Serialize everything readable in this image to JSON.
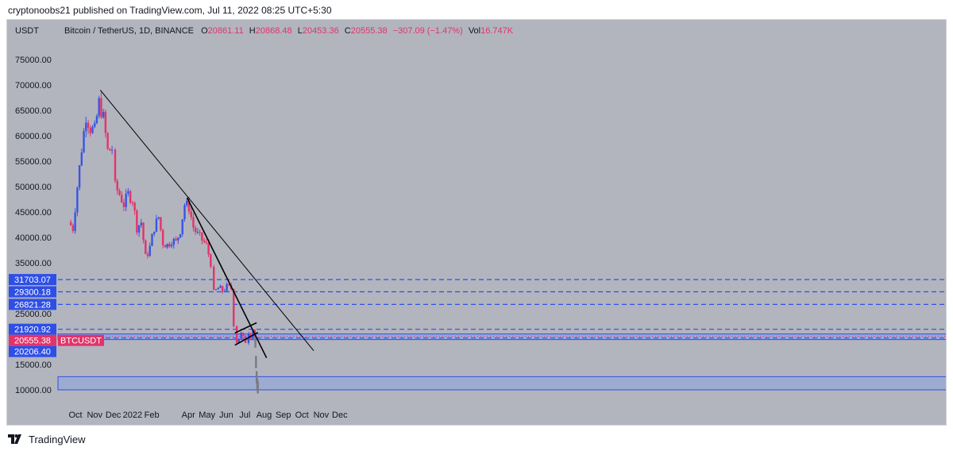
{
  "header": {
    "text": "cryptonoobs21 published on TradingView.com, Jul 11, 2022 08:25 UTC+5:30"
  },
  "footer": {
    "brand": "TradingView"
  },
  "colors": {
    "background": "#b2b5be",
    "up": "#3a55e0",
    "down": "#e3336b",
    "level": "#2e4fe6",
    "zone": "#8ea3e0",
    "trend": "#000000"
  },
  "chart_data": {
    "type": "candlestick",
    "symbol_line": {
      "currency": "USDT",
      "name": "Bitcoin / TetherUS, 1D, BINANCE",
      "o_label": "O",
      "o": "20861.11",
      "h_label": "H",
      "h": "20868.48",
      "l_label": "L",
      "l": "20453.36",
      "c_label": "C",
      "c": "20555.38",
      "change": "−307.09 (−1.47%)",
      "vol_label": "Vol",
      "vol": "16.747K"
    },
    "y_ticks": [
      "75000.00",
      "70000.00",
      "65000.00",
      "60000.00",
      "55000.00",
      "50000.00",
      "45000.00",
      "40000.00",
      "35000.00",
      "25000.00",
      "15000.00",
      "10000.00"
    ],
    "y_tick_values": [
      75000,
      70000,
      65000,
      60000,
      55000,
      50000,
      45000,
      40000,
      35000,
      25000,
      15000,
      10000
    ],
    "x_ticks": [
      {
        "label": "Oct",
        "date": "2021-10-01"
      },
      {
        "label": "Nov",
        "date": "2021-11-01"
      },
      {
        "label": "Dec",
        "date": "2021-12-01"
      },
      {
        "label": "2022",
        "date": "2022-01-01"
      },
      {
        "label": "Feb",
        "date": "2022-02-01"
      },
      {
        "label": "Apr",
        "date": "2022-04-01"
      },
      {
        "label": "May",
        "date": "2022-05-01"
      },
      {
        "label": "Jun",
        "date": "2022-06-01"
      },
      {
        "label": "Jul",
        "date": "2022-07-01"
      },
      {
        "label": "Aug",
        "date": "2022-08-01"
      },
      {
        "label": "Sep",
        "date": "2022-09-01"
      },
      {
        "label": "Oct",
        "date": "2022-10-01"
      },
      {
        "label": "Nov",
        "date": "2022-11-01"
      },
      {
        "label": "Dec",
        "date": "2022-12-01"
      }
    ],
    "levels": [
      {
        "label": "31703.07",
        "value": 31703.07
      },
      {
        "label": "29300.18",
        "value": 29300.18
      },
      {
        "label": "26821.28",
        "value": 26821.28
      },
      {
        "label": "21920.92",
        "value": 21920.92
      },
      {
        "label": "20206.40",
        "value": 20206.4
      }
    ],
    "last_price": {
      "label": "20555.38",
      "symbol": "BTCUSDT",
      "value": 20555.38
    },
    "zones": [
      {
        "from": 19900,
        "to": 21000
      },
      {
        "from": 10000,
        "to": 12600
      }
    ],
    "trendlines": [
      {
        "from": {
          "date": "2021-11-10",
          "price": 69000
        },
        "to": {
          "date": "2022-10-20",
          "price": 17700
        }
      },
      {
        "from": {
          "date": "2022-03-30",
          "price": 47800
        },
        "to": {
          "date": "2022-08-05",
          "price": 16300
        }
      },
      {
        "from": {
          "date": "2022-06-15",
          "price": 21200
        },
        "to": {
          "date": "2022-07-20",
          "price": 23200
        }
      },
      {
        "from": {
          "date": "2022-06-15",
          "price": 18800
        },
        "to": {
          "date": "2022-07-22",
          "price": 21300
        }
      }
    ],
    "closes": [
      {
        "date": "2021-09-20",
        "close": 43000
      },
      {
        "date": "2021-09-27",
        "close": 41800
      },
      {
        "date": "2021-10-04",
        "close": 50000
      },
      {
        "date": "2021-10-11",
        "close": 57500
      },
      {
        "date": "2021-10-18",
        "close": 64000
      },
      {
        "date": "2021-10-25",
        "close": 61500
      },
      {
        "date": "2021-11-01",
        "close": 61000
      },
      {
        "date": "2021-11-08",
        "close": 66500
      },
      {
        "date": "2021-11-15",
        "close": 63500
      },
      {
        "date": "2021-11-22",
        "close": 57000
      },
      {
        "date": "2021-11-29",
        "close": 57500
      },
      {
        "date": "2021-12-04",
        "close": 50000
      },
      {
        "date": "2021-12-11",
        "close": 48500
      },
      {
        "date": "2021-12-18",
        "close": 46500
      },
      {
        "date": "2021-12-25",
        "close": 48500
      },
      {
        "date": "2022-01-01",
        "close": 47500
      },
      {
        "date": "2022-01-08",
        "close": 42000
      },
      {
        "date": "2022-01-15",
        "close": 43000
      },
      {
        "date": "2022-01-22",
        "close": 36000
      },
      {
        "date": "2022-01-29",
        "close": 38000
      },
      {
        "date": "2022-02-05",
        "close": 42000
      },
      {
        "date": "2022-02-12",
        "close": 44000
      },
      {
        "date": "2022-02-19",
        "close": 39000
      },
      {
        "date": "2022-02-26",
        "close": 38500
      },
      {
        "date": "2022-03-05",
        "close": 39500
      },
      {
        "date": "2022-03-12",
        "close": 39000
      },
      {
        "date": "2022-03-19",
        "close": 41500
      },
      {
        "date": "2022-03-26",
        "close": 46500
      },
      {
        "date": "2022-04-02",
        "close": 46000
      },
      {
        "date": "2022-04-09",
        "close": 42000
      },
      {
        "date": "2022-04-16",
        "close": 40500
      },
      {
        "date": "2022-04-23",
        "close": 39500
      },
      {
        "date": "2022-04-30",
        "close": 38500
      },
      {
        "date": "2022-05-07",
        "close": 35000
      },
      {
        "date": "2022-05-12",
        "close": 29000
      },
      {
        "date": "2022-05-19",
        "close": 30000
      },
      {
        "date": "2022-05-26",
        "close": 29500
      },
      {
        "date": "2022-06-02",
        "close": 30200
      },
      {
        "date": "2022-06-09",
        "close": 30000
      },
      {
        "date": "2022-06-13",
        "close": 23000
      },
      {
        "date": "2022-06-18",
        "close": 19500
      },
      {
        "date": "2022-06-25",
        "close": 21000
      },
      {
        "date": "2022-07-02",
        "close": 19500
      },
      {
        "date": "2022-07-07",
        "close": 21500
      },
      {
        "date": "2022-07-10",
        "close": 20555
      },
      {
        "date": "2022-07-14",
        "close": 22000
      },
      {
        "date": "2022-07-17",
        "close": 20500
      }
    ],
    "projection": [
      {
        "date": "2022-07-18",
        "price": 19500
      },
      {
        "date": "2022-07-19",
        "price": 15500
      },
      {
        "date": "2022-07-20",
        "price": 12500
      },
      {
        "date": "2022-07-21",
        "price": 11000
      },
      {
        "date": "2022-07-22",
        "price": 10500
      }
    ]
  }
}
